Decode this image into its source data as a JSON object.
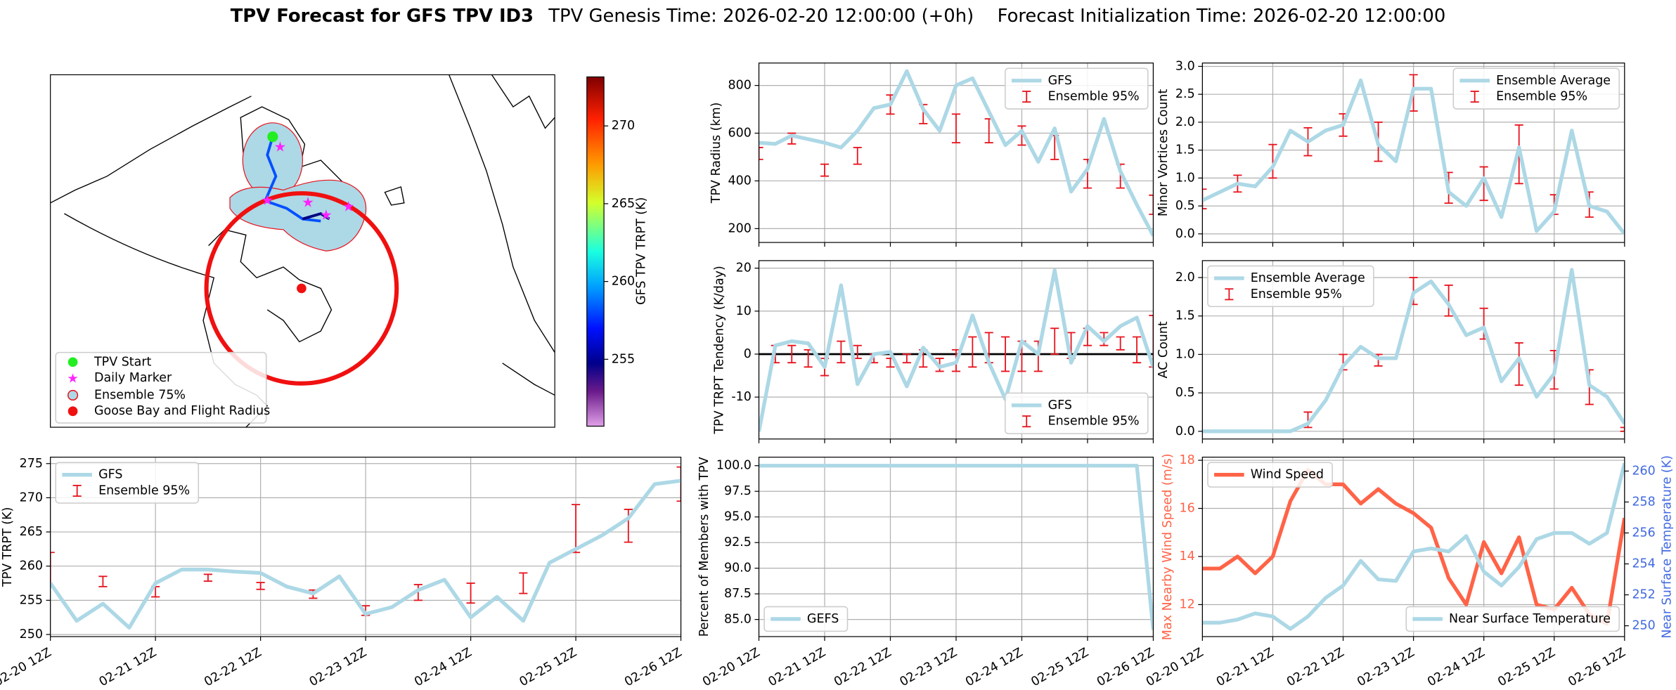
{
  "title": "TPV Forecast for GFS TPV ID3",
  "genesis": "TPV Genesis Time: 2026-02-20 12:00:00 (+0h)",
  "init": "Forecast Initialization Time: 2026-02-20 12:00:00",
  "time": {
    "x": [
      "02-20 12Z",
      "02-20 18Z",
      "02-21 00Z",
      "02-21 06Z",
      "02-21 12Z",
      "02-21 18Z",
      "02-22 00Z",
      "02-22 06Z",
      "02-22 12Z",
      "02-22 18Z",
      "02-23 00Z",
      "02-23 06Z",
      "02-23 12Z",
      "02-23 18Z",
      "02-24 00Z",
      "02-24 06Z",
      "02-24 12Z",
      "02-24 18Z",
      "02-25 00Z",
      "02-25 06Z",
      "02-25 12Z",
      "02-25 18Z",
      "02-26 00Z",
      "02-26 06Z",
      "02-26 12Z"
    ],
    "xticks": [
      "02-20 12Z",
      "02-21 12Z",
      "02-22 12Z",
      "02-23 12Z",
      "02-24 12Z",
      "02-25 12Z",
      "02-26 12Z"
    ]
  },
  "map": {
    "legend": [
      "TPV Start",
      "Daily Marker",
      "Ensemble 75%",
      "Goose Bay and Flight Radius"
    ],
    "colorbar": {
      "label": "GFS TPV TRPT (K)",
      "clim": [
        250.7,
        273.15
      ],
      "cticks": [
        255,
        260,
        265,
        270
      ]
    }
  },
  "chart_data": [
    {
      "type": "line",
      "ylabel": "TPV Radius (km)",
      "ylim": [
        142,
        894
      ],
      "yticks": [
        200,
        400,
        600,
        800
      ],
      "grid": true,
      "xtick_labels": false,
      "legend": "upper right",
      "series": [
        {
          "name": "GFS",
          "color": "#add8e6",
          "values": [
            560,
            555,
            590,
            575,
            560,
            540,
            610,
            705,
            720,
            860,
            700,
            610,
            800,
            830,
            690,
            550,
            610,
            480,
            620,
            355,
            450,
            660,
            440,
            300,
            170
          ]
        }
      ],
      "errorbars": {
        "name": "Ensemble 95%",
        "color": "#e8141e",
        "low": [
          490,
          null,
          555,
          null,
          420,
          null,
          470,
          null,
          680,
          null,
          640,
          null,
          560,
          null,
          560,
          null,
          550,
          null,
          490,
          null,
          370,
          null,
          370,
          null,
          260
        ],
        "high": [
          540,
          null,
          600,
          null,
          470,
          null,
          540,
          null,
          760,
          null,
          720,
          null,
          680,
          null,
          660,
          null,
          630,
          null,
          590,
          null,
          490,
          null,
          470,
          null,
          340
        ]
      }
    },
    {
      "type": "line",
      "ylabel": "TPV TRPT Tendency (K/day)",
      "ylim": [
        -19.75,
        21.75
      ],
      "yticks": [
        -10,
        0,
        10,
        20
      ],
      "grid": true,
      "xtick_labels": false,
      "legend": "lower right",
      "hline": 0,
      "series": [
        {
          "name": "GFS",
          "color": "#add8e6",
          "values": [
            -18,
            2,
            3,
            2.5,
            -3,
            16,
            -7,
            0,
            0.5,
            -7.5,
            1.5,
            -3,
            -2,
            9,
            -2,
            -10.5,
            3,
            0,
            19.5,
            -2,
            6.5,
            3,
            6.5,
            8.5,
            -3
          ]
        }
      ],
      "errorbars": {
        "name": "Ensemble 95%",
        "color": "#e8141e",
        "low": [
          null,
          -2,
          -2,
          -3,
          -5,
          -2,
          -1,
          -2,
          -3,
          -2,
          -3,
          -4,
          -4,
          -3,
          -2,
          -4,
          -4,
          -4,
          0,
          -1,
          2,
          2,
          1,
          -2,
          -3
        ],
        "high": [
          null,
          2,
          2,
          1,
          -1,
          3,
          2,
          0,
          -1,
          0,
          1,
          -1,
          1,
          4,
          5,
          4,
          3,
          3,
          6,
          5,
          6,
          5,
          4,
          4,
          9
        ]
      }
    },
    {
      "type": "line",
      "ylabel": "Percent of Members with TPV",
      "ylim": [
        83.33,
        100.83
      ],
      "yticks": [
        {
          "value": 85,
          "label": "85.0"
        },
        87.5,
        {
          "value": 90,
          "label": "90.0"
        },
        92.5,
        {
          "value": 95,
          "label": "95.0"
        },
        97.5,
        {
          "value": 100,
          "label": "100.0"
        }
      ],
      "grid": true,
      "xtick_labels": true,
      "legend": "lower left",
      "series": [
        {
          "name": "GEFS",
          "color": "#add8e6",
          "values": [
            100,
            100,
            100,
            100,
            100,
            100,
            100,
            100,
            100,
            100,
            100,
            100,
            100,
            100,
            100,
            100,
            100,
            100,
            100,
            100,
            100,
            100,
            100,
            100,
            84
          ]
        }
      ]
    },
    {
      "type": "line",
      "ylabel": "Minor Vortices Count",
      "ylim": [
        -0.154,
        3.06
      ],
      "yticks": [
        {
          "value": 0,
          "label": "0.0"
        },
        0.5,
        {
          "value": 1,
          "label": "1.0"
        },
        1.5,
        {
          "value": 2,
          "label": "2.0"
        },
        2.5,
        {
          "value": 3,
          "label": "3.0"
        }
      ],
      "grid": true,
      "xtick_labels": false,
      "legend": "upper right",
      "series": [
        {
          "name": "Ensemble Average",
          "color": "#add8e6",
          "values": [
            0.6,
            0.75,
            0.9,
            0.85,
            1.2,
            1.85,
            1.65,
            1.85,
            1.95,
            2.75,
            1.6,
            1.3,
            2.6,
            2.6,
            0.75,
            0.5,
            1.0,
            0.3,
            1.55,
            0.05,
            0.4,
            1.85,
            0.5,
            0.4,
            0.0
          ]
        }
      ],
      "errorbars": {
        "name": "Ensemble 95%",
        "color": "#e8141e",
        "low": [
          0.45,
          null,
          0.75,
          null,
          1.0,
          null,
          1.4,
          null,
          1.75,
          null,
          1.3,
          null,
          2.2,
          null,
          0.55,
          null,
          0.6,
          null,
          0.9,
          null,
          0.35,
          null,
          0.3,
          null,
          null
        ],
        "high": [
          0.8,
          null,
          1.05,
          null,
          1.6,
          null,
          1.9,
          null,
          2.15,
          null,
          2.0,
          null,
          2.85,
          null,
          1.1,
          null,
          1.2,
          null,
          1.95,
          null,
          0.7,
          null,
          0.75,
          null,
          null
        ]
      }
    },
    {
      "type": "line",
      "ylabel": "AC Count",
      "ylim": [
        -0.1,
        2.22
      ],
      "yticks": [
        {
          "value": 0,
          "label": "0.0"
        },
        0.5,
        {
          "value": 1,
          "label": "1.0"
        },
        1.5,
        {
          "value": 2,
          "label": "2.0"
        }
      ],
      "grid": true,
      "xtick_labels": false,
      "legend": "upper left",
      "series": [
        {
          "name": "Ensemble Average",
          "color": "#add8e6",
          "values": [
            0,
            0,
            0,
            0,
            0,
            0,
            0.1,
            0.4,
            0.85,
            1.1,
            0.95,
            0.95,
            1.8,
            1.95,
            1.65,
            1.25,
            1.35,
            0.65,
            0.95,
            0.45,
            0.75,
            2.1,
            0.6,
            0.45,
            0.1
          ]
        }
      ],
      "errorbars": {
        "name": "Ensemble 95%",
        "color": "#e8141e",
        "low": [
          null,
          null,
          0,
          null,
          0,
          null,
          0.05,
          null,
          0.8,
          null,
          0.85,
          null,
          1.65,
          null,
          1.5,
          null,
          1.2,
          null,
          0.6,
          null,
          0.55,
          null,
          0.35,
          null,
          0
        ],
        "high": [
          null,
          null,
          0,
          null,
          0,
          null,
          0.25,
          null,
          1.0,
          null,
          1.0,
          null,
          2.0,
          null,
          1.9,
          null,
          1.6,
          null,
          1.15,
          null,
          1.05,
          null,
          0.8,
          null,
          0.05
        ]
      }
    },
    {
      "type": "line",
      "ylabel": "Max Nearby Wind Speed (m/s)",
      "ylabel_color": "#ff6347",
      "y2label": "Near Surface Temperature (K)",
      "y2label_color": "#4169e1",
      "ylim": [
        10.67,
        18.13
      ],
      "yticks": [
        12,
        14,
        16,
        18
      ],
      "y2lim": [
        249.3,
        260.9
      ],
      "y2ticks": [
        250,
        252,
        254,
        256,
        258,
        260
      ],
      "grid": true,
      "xtick_labels": true,
      "legend": "upper left",
      "series": [
        {
          "name": "Wind Speed",
          "color": "#ff6347",
          "values": [
            13.5,
            13.5,
            14,
            13.3,
            14,
            16.3,
            17.6,
            17,
            17,
            16.2,
            16.8,
            16.2,
            15.8,
            15.2,
            13.1,
            12,
            14.6,
            13.3,
            14.8,
            12,
            11.8,
            12.7,
            11.6,
            11.2,
            15.6
          ]
        },
        {
          "name": "Near Surface Temperature",
          "color": "#add8e6",
          "axis": "y2",
          "legend": "lower right",
          "values": [
            250.2,
            250.2,
            250.4,
            250.8,
            250.6,
            249.8,
            250.6,
            251.8,
            252.6,
            254.2,
            253,
            252.9,
            254.8,
            255,
            254.8,
            255.8,
            253.5,
            252.6,
            253.8,
            255.6,
            256,
            256,
            255.3,
            256,
            260.5
          ]
        }
      ]
    },
    {
      "type": "line",
      "ylabel": "TPV TRPT (K)",
      "ylim": [
        249.69,
        275.94
      ],
      "yticks": [
        250,
        255,
        260,
        265,
        270,
        275
      ],
      "grid": true,
      "xtick_labels": true,
      "legend": "upper left",
      "series": [
        {
          "name": "GFS",
          "color": "#add8e6",
          "values": [
            257.5,
            252,
            254.5,
            251,
            257.5,
            259.5,
            259.5,
            259.2,
            259,
            257,
            256,
            258.5,
            253,
            254,
            256.5,
            258,
            252.5,
            255.5,
            252,
            260.5,
            262.5,
            264.5,
            267,
            272,
            272.5
          ]
        }
      ],
      "errorbars": {
        "name": "Ensemble 95%",
        "color": "#e8141e",
        "low": [
          257,
          null,
          257,
          null,
          255.5,
          null,
          257.8,
          null,
          256.6,
          null,
          255.3,
          null,
          252.8,
          null,
          255,
          null,
          254.6,
          null,
          256,
          null,
          262,
          null,
          263.5,
          null,
          269.5
        ],
        "high": [
          262,
          null,
          258.5,
          null,
          257,
          null,
          258.8,
          null,
          257.6,
          null,
          256.5,
          null,
          254.2,
          null,
          257.3,
          null,
          257.5,
          null,
          259,
          null,
          269,
          null,
          268.3,
          null,
          274.5
        ]
      }
    }
  ]
}
